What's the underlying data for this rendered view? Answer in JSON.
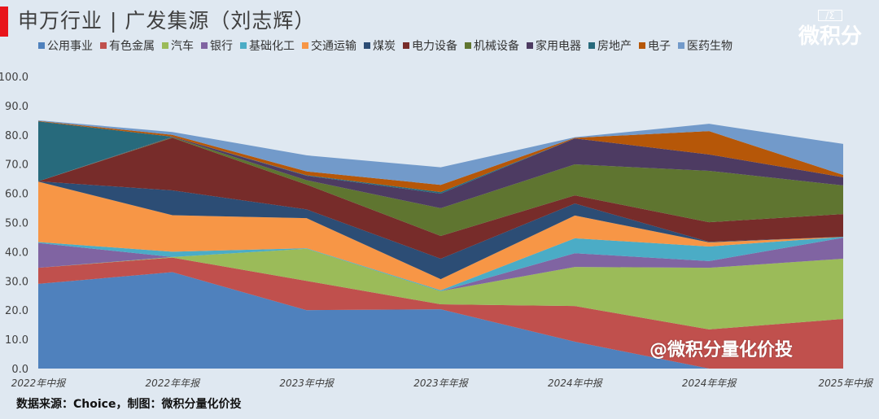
{
  "title": "申万行业 | 广发集源（刘志辉）",
  "logo": {
    "text": "微积分",
    "mark": "/Σ"
  },
  "footer": "数据来源：Choice，制图：微积分量化价投",
  "watermark": "@微积分量化价投",
  "chart_data": {
    "type": "area",
    "stacked": true,
    "categories": [
      "2022年中报",
      "2022年年报",
      "2023年中报",
      "2023年年报",
      "2024年中报",
      "2024年年报",
      "2025年中报"
    ],
    "ylim": [
      0,
      100
    ],
    "yticks": [
      "0.0",
      "10.0",
      "20.0",
      "30.0",
      "40.0",
      "50.0",
      "60.0",
      "70.0",
      "80.0",
      "90.0",
      "100.0"
    ],
    "grid": false,
    "legend": "top",
    "series": [
      {
        "name": "公用事业",
        "color": "#4f81bd",
        "values": [
          29,
          33,
          20,
          20.3,
          9.2,
          0,
          0
        ]
      },
      {
        "name": "有色金属",
        "color": "#c0504d",
        "values": [
          5.5,
          5,
          10,
          1.7,
          12.2,
          13.4,
          17
        ]
      },
      {
        "name": "汽车",
        "color": "#9bbb59",
        "values": [
          0,
          0.2,
          11,
          4.5,
          13.4,
          21.1,
          20.6
        ]
      },
      {
        "name": "银行",
        "color": "#8064a2",
        "values": [
          8.5,
          0,
          0,
          0,
          4.7,
          2.3,
          7.2
        ]
      },
      {
        "name": "基础化工",
        "color": "#4bacc6",
        "values": [
          0.3,
          1.8,
          0.2,
          0.3,
          5.1,
          5,
          0.3
        ]
      },
      {
        "name": "交通运输",
        "color": "#f79646",
        "values": [
          20.7,
          12.5,
          10.3,
          3.8,
          7.8,
          1.4,
          0
        ]
      },
      {
        "name": "煤炭",
        "color": "#2c4d75",
        "values": [
          0.1,
          8.5,
          3,
          7,
          4.1,
          0.2,
          0
        ]
      },
      {
        "name": "电力设备",
        "color": "#772c2a",
        "values": [
          0,
          18,
          8.5,
          7.8,
          2.8,
          6.7,
          7.8
        ]
      },
      {
        "name": "机械设备",
        "color": "#5f7530",
        "values": [
          0,
          0.2,
          1.5,
          9.5,
          10.6,
          17.6,
          9.8
        ]
      },
      {
        "name": "家用电器",
        "color": "#4d3b62",
        "values": [
          0,
          0.2,
          1.5,
          5,
          8.9,
          5.6,
          2.8
        ]
      },
      {
        "name": "房地产",
        "color": "#276a7c",
        "values": [
          20.5,
          0,
          0.2,
          0.5,
          0,
          0,
          0
        ]
      },
      {
        "name": "电子",
        "color": "#b65708",
        "values": [
          0.2,
          0.6,
          1.3,
          2.5,
          0.2,
          8,
          0.8
        ]
      },
      {
        "name": "医药生物",
        "color": "#729aca",
        "values": [
          0.2,
          1,
          5.5,
          6,
          0.2,
          2.5,
          10.6
        ]
      }
    ]
  }
}
